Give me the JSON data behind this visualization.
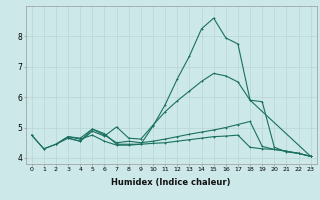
{
  "xlabel": "Humidex (Indice chaleur)",
  "bg_color": "#cce8e8",
  "grid_color": "#b8d4d4",
  "line_color": "#1a7060",
  "xlim": [
    -0.5,
    23.5
  ],
  "ylim": [
    3.8,
    9.0
  ],
  "xticks": [
    0,
    1,
    2,
    3,
    4,
    5,
    6,
    7,
    8,
    9,
    10,
    11,
    12,
    13,
    14,
    15,
    16,
    17,
    18,
    19,
    20,
    21,
    22,
    23
  ],
  "yticks": [
    4,
    5,
    6,
    7,
    8
  ],
  "line1_x": [
    0,
    1,
    2,
    3,
    4,
    5,
    6,
    7,
    8,
    9,
    10,
    11,
    12,
    13,
    14,
    15,
    16,
    17,
    18,
    19,
    20,
    21,
    22,
    23
  ],
  "line1_y": [
    4.75,
    4.3,
    4.45,
    4.7,
    4.65,
    4.95,
    4.8,
    4.45,
    4.45,
    4.45,
    5.05,
    5.75,
    6.6,
    7.35,
    8.25,
    8.6,
    7.95,
    7.75,
    5.9,
    5.85,
    4.35,
    4.2,
    4.15,
    4.05
  ],
  "line2_x": [
    0,
    1,
    2,
    3,
    4,
    5,
    6,
    7,
    8,
    9,
    10,
    11,
    12,
    13,
    14,
    15,
    16,
    17,
    18,
    19,
    20,
    21,
    22,
    23
  ],
  "line2_y": [
    4.75,
    4.3,
    4.45,
    4.65,
    4.55,
    4.95,
    4.75,
    4.5,
    4.55,
    4.5,
    4.55,
    4.62,
    4.7,
    4.78,
    4.85,
    4.92,
    5.0,
    5.1,
    5.2,
    4.38,
    4.28,
    4.22,
    4.15,
    4.05
  ],
  "line3_x": [
    2,
    3,
    4,
    5,
    6,
    7,
    8,
    9,
    10,
    11,
    12,
    13,
    14,
    15,
    16,
    17,
    18,
    19,
    20,
    21,
    22,
    23
  ],
  "line3_y": [
    4.45,
    4.7,
    4.62,
    4.75,
    4.55,
    4.42,
    4.42,
    4.45,
    4.48,
    4.5,
    4.55,
    4.6,
    4.65,
    4.7,
    4.72,
    4.75,
    4.35,
    4.3,
    4.28,
    4.22,
    4.15,
    4.05
  ],
  "line4_x": [
    3,
    4,
    5,
    6,
    7,
    8,
    9,
    10,
    11,
    12,
    13,
    14,
    15,
    16,
    17,
    18,
    23
  ],
  "line4_y": [
    4.65,
    4.55,
    4.88,
    4.72,
    5.02,
    4.65,
    4.62,
    5.08,
    5.52,
    5.88,
    6.2,
    6.52,
    6.78,
    6.7,
    6.5,
    5.9,
    4.05
  ]
}
